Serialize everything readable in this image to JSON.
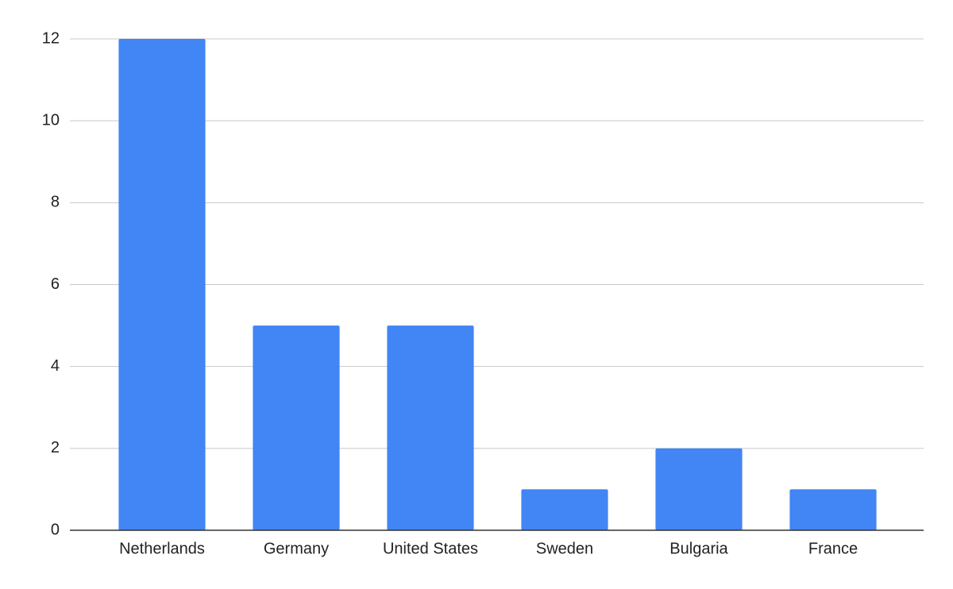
{
  "chart_data": {
    "type": "bar",
    "categories": [
      "Netherlands",
      "Germany",
      "United States",
      "Sweden",
      "Bulgaria",
      "France"
    ],
    "values": [
      12,
      5,
      5,
      1,
      2,
      1
    ],
    "color": "#4285f4",
    "ylim": [
      0,
      12
    ],
    "yticks": [
      0,
      2,
      4,
      6,
      8,
      10,
      12
    ],
    "grid": true
  }
}
